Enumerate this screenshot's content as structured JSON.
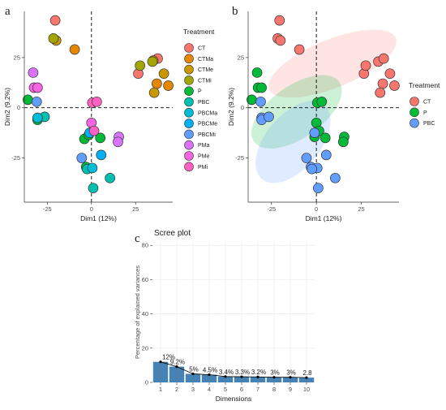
{
  "figure": {
    "panel_a_letter": "a",
    "panel_b_letter": "b",
    "panel_c_letter": "c"
  },
  "chart_data": [
    {
      "type": "scatter",
      "panel": "a",
      "xlabel": "Dim1 (12%)",
      "ylabel": "Dim2 (9.2%)",
      "xlim": [
        -38,
        46
      ],
      "ylim": [
        -47,
        48
      ],
      "xticks": [
        -25,
        0,
        25
      ],
      "yticks": [
        25,
        0,
        -25
      ],
      "xtick_labels": [
        "-25",
        "0",
        "25"
      ],
      "ytick_labels": [
        "25",
        "0",
        "-25"
      ],
      "reference_lines": {
        "x": 0,
        "y": 0,
        "style": "dashed"
      },
      "legend": {
        "title": "Treatment",
        "position": "right",
        "entries": [
          {
            "name": "CT",
            "color": "#F8766D"
          },
          {
            "name": "CTMa",
            "color": "#E58700"
          },
          {
            "name": "CTMe",
            "color": "#C99800"
          },
          {
            "name": "CTMi",
            "color": "#A3A500"
          },
          {
            "name": "P",
            "color": "#00BA38"
          },
          {
            "name": "PBC",
            "color": "#00C0AF"
          },
          {
            "name": "PBCMa",
            "color": "#00BCD8"
          },
          {
            "name": "PBCMe",
            "color": "#00B0F6"
          },
          {
            "name": "PBCMi",
            "color": "#619CFF"
          },
          {
            "name": "PMa",
            "color": "#DB72FB"
          },
          {
            "name": "PMe",
            "color": "#F564E3"
          },
          {
            "name": "PMi",
            "color": "#FF61C3"
          }
        ]
      },
      "points": [
        {
          "group": "CT",
          "x": -20.5,
          "y": 43.5
        },
        {
          "group": "CT",
          "x": 37.5,
          "y": 24.5
        },
        {
          "group": "CT",
          "x": 26.5,
          "y": 17.0
        },
        {
          "group": "CTMa",
          "x": -9.5,
          "y": 29.0
        },
        {
          "group": "CTMa",
          "x": 35.0,
          "y": 23.5
        },
        {
          "group": "CTMa",
          "x": 37.0,
          "y": 12.0
        },
        {
          "group": "CTMa",
          "x": 43.5,
          "y": 11.0
        },
        {
          "group": "CTMe",
          "x": -20.0,
          "y": 33.5
        },
        {
          "group": "CTMe",
          "x": 41.0,
          "y": 17.0
        },
        {
          "group": "CTMe",
          "x": 35.5,
          "y": 7.5
        },
        {
          "group": "CTMi",
          "x": -21.5,
          "y": 34.5
        },
        {
          "group": "CTMi",
          "x": 27.5,
          "y": 21.0
        },
        {
          "group": "CTMi",
          "x": 34.5,
          "y": 23.0
        },
        {
          "group": "P",
          "x": -36.0,
          "y": 4.0
        },
        {
          "group": "P",
          "x": -30.5,
          "y": -6.0
        },
        {
          "group": "P",
          "x": -4.0,
          "y": -15.5
        },
        {
          "group": "P",
          "x": -1.5,
          "y": -13.5
        },
        {
          "group": "P",
          "x": -3.0,
          "y": -29.5
        },
        {
          "group": "P",
          "x": 5.0,
          "y": -15.0
        },
        {
          "group": "PBC",
          "x": -26.5,
          "y": -4.5
        },
        {
          "group": "PBC",
          "x": 1.0,
          "y": -40.0
        },
        {
          "group": "PBC",
          "x": 10.5,
          "y": -35.0
        },
        {
          "group": "PBC",
          "x": -2.5,
          "y": -30.5
        },
        {
          "group": "PBCMa",
          "x": -30.5,
          "y": -5.0
        },
        {
          "group": "PBCMa",
          "x": 0.5,
          "y": -30.0
        },
        {
          "group": "PBCMe",
          "x": 5.5,
          "y": -23.5
        },
        {
          "group": "PBCMe",
          "x": -1.0,
          "y": -12.5
        },
        {
          "group": "PBCMi",
          "x": -31.0,
          "y": 3.0
        },
        {
          "group": "PBCMi",
          "x": -5.5,
          "y": -25.0
        },
        {
          "group": "PMa",
          "x": -33.0,
          "y": 17.5
        },
        {
          "group": "PMa",
          "x": 15.5,
          "y": -14.5
        },
        {
          "group": "PMa",
          "x": 15.0,
          "y": -17.0
        },
        {
          "group": "PMe",
          "x": -32.5,
          "y": 10.0
        },
        {
          "group": "PMe",
          "x": -30.5,
          "y": 10.0
        },
        {
          "group": "PMe",
          "x": 0.0,
          "y": -7.5
        },
        {
          "group": "PMi",
          "x": 0.5,
          "y": 2.5
        },
        {
          "group": "PMi",
          "x": 3.0,
          "y": 3.0
        },
        {
          "group": "PMi",
          "x": 1.5,
          "y": -11.5
        }
      ]
    },
    {
      "type": "scatter",
      "panel": "b",
      "xlabel": "Dim1 (12%)",
      "ylabel": "Dim2 (9.2%)",
      "xlim": [
        -38,
        46
      ],
      "ylim": [
        -47,
        48
      ],
      "xticks": [
        -25,
        0,
        25
      ],
      "yticks": [
        25,
        0,
        -25
      ],
      "xtick_labels": [
        "-25",
        "0",
        "25"
      ],
      "ytick_labels": [
        "25",
        "0",
        "-25"
      ],
      "reference_lines": {
        "x": 0,
        "y": 0,
        "style": "dashed"
      },
      "confidence_ellipses": [
        {
          "group": "CT",
          "cx": 9.0,
          "cy": 22.0,
          "rx": 38.0,
          "ry": 12.0,
          "angle_deg": -22
        },
        {
          "group": "P",
          "cx": -11.0,
          "cy": -2.0,
          "rx": 29.0,
          "ry": 13.0,
          "angle_deg": -35
        },
        {
          "group": "PBC",
          "cx": -13.0,
          "cy": -17.0,
          "rx": 27.0,
          "ry": 13.5,
          "angle_deg": -50
        }
      ],
      "legend": {
        "title": "Treatment",
        "position": "right",
        "entries": [
          {
            "name": "CT",
            "color": "#F8766D"
          },
          {
            "name": "P",
            "color": "#00BA38"
          },
          {
            "name": "PBC",
            "color": "#619CFF"
          }
        ]
      },
      "points": [
        {
          "group": "CT",
          "x": -20.5,
          "y": 43.5
        },
        {
          "group": "CT",
          "x": -21.5,
          "y": 34.5
        },
        {
          "group": "CT",
          "x": -20.0,
          "y": 33.5
        },
        {
          "group": "CT",
          "x": -9.5,
          "y": 29.0
        },
        {
          "group": "CT",
          "x": 26.5,
          "y": 17.0
        },
        {
          "group": "CT",
          "x": 27.5,
          "y": 21.0
        },
        {
          "group": "CT",
          "x": 34.5,
          "y": 23.0
        },
        {
          "group": "CT",
          "x": 37.5,
          "y": 24.5
        },
        {
          "group": "CT",
          "x": 41.0,
          "y": 17.0
        },
        {
          "group": "CT",
          "x": 37.0,
          "y": 12.0
        },
        {
          "group": "CT",
          "x": 43.5,
          "y": 11.0
        },
        {
          "group": "CT",
          "x": 35.5,
          "y": 7.5
        },
        {
          "group": "P",
          "x": -33.0,
          "y": 17.5
        },
        {
          "group": "P",
          "x": -32.5,
          "y": 10.0
        },
        {
          "group": "P",
          "x": -30.5,
          "y": 10.0
        },
        {
          "group": "P",
          "x": -36.0,
          "y": 4.0
        },
        {
          "group": "P",
          "x": 0.5,
          "y": 2.5
        },
        {
          "group": "P",
          "x": 3.0,
          "y": 3.0
        },
        {
          "group": "P",
          "x": 0.0,
          "y": -7.5
        },
        {
          "group": "P",
          "x": 1.5,
          "y": -11.5
        },
        {
          "group": "P",
          "x": -1.0,
          "y": -14.5
        },
        {
          "group": "P",
          "x": 5.0,
          "y": -15.0
        },
        {
          "group": "P",
          "x": 15.5,
          "y": -14.5
        },
        {
          "group": "P",
          "x": 15.0,
          "y": -17.0
        },
        {
          "group": "PBC",
          "x": -31.0,
          "y": 3.0
        },
        {
          "group": "PBC",
          "x": -30.5,
          "y": -5.0
        },
        {
          "group": "PBC",
          "x": -30.5,
          "y": -6.0
        },
        {
          "group": "PBC",
          "x": -26.5,
          "y": -4.5
        },
        {
          "group": "PBC",
          "x": -1.0,
          "y": -12.5
        },
        {
          "group": "PBC",
          "x": 5.5,
          "y": -23.5
        },
        {
          "group": "PBC",
          "x": -5.5,
          "y": -25.0
        },
        {
          "group": "PBC",
          "x": -3.0,
          "y": -29.5
        },
        {
          "group": "PBC",
          "x": 0.5,
          "y": -30.0
        },
        {
          "group": "PBC",
          "x": -2.5,
          "y": -30.5
        },
        {
          "group": "PBC",
          "x": 10.5,
          "y": -35.0
        },
        {
          "group": "PBC",
          "x": 1.0,
          "y": -40.0
        }
      ]
    },
    {
      "type": "bar",
      "panel": "c",
      "title": "Scree plot",
      "xlabel": "Dimensions",
      "ylabel": "Percentage of explained variances",
      "ylim": [
        0,
        82
      ],
      "yticks": [
        0,
        20,
        40,
        60,
        80
      ],
      "bar_color": "#4682B4",
      "line_color": "#000000",
      "categories": [
        "1",
        "2",
        "3",
        "4",
        "5",
        "6",
        "7",
        "8",
        "9",
        "10"
      ],
      "values": [
        12,
        9.2,
        5,
        4.5,
        3.4,
        3.3,
        3.2,
        3,
        3,
        2.8
      ],
      "data_labels": [
        "12%",
        "9.2%",
        "5%",
        "4.5%",
        "3.4%",
        "3.3%",
        "3.2%",
        "3%",
        "3%",
        "2.8"
      ]
    }
  ]
}
